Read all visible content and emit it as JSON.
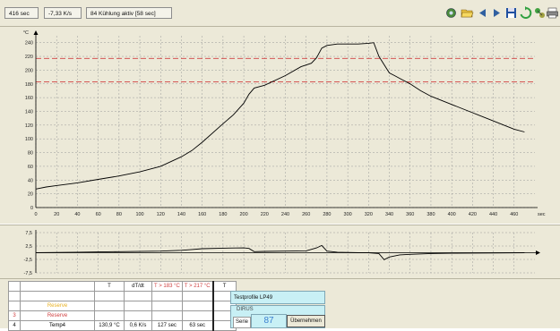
{
  "status": {
    "time": "416 sec",
    "rate": "-7,33 K/s",
    "phase": "84 Kühlung aktiv [58 sec]"
  },
  "toolbar": {
    "icons": [
      "settings-gear-icon",
      "open-folder-icon",
      "prev-arrow-icon",
      "next-arrow-icon",
      "save-disk-icon",
      "refresh-icon",
      "export-icon",
      "print-icon"
    ]
  },
  "chart_data": [
    {
      "type": "line",
      "title": "",
      "ylabel": "°C",
      "xlabel": "sec",
      "xlim": [
        0,
        480
      ],
      "ylim": [
        0,
        250
      ],
      "xticks": [
        0,
        20,
        40,
        60,
        80,
        100,
        120,
        140,
        160,
        180,
        200,
        220,
        240,
        260,
        280,
        300,
        320,
        340,
        360,
        380,
        400,
        420,
        440,
        460
      ],
      "yticks": [
        0,
        20,
        40,
        60,
        80,
        100,
        120,
        140,
        160,
        180,
        200,
        220,
        240
      ],
      "grid": true,
      "series": [
        {
          "color": "#000000",
          "x": [
            0,
            10,
            20,
            40,
            60,
            80,
            100,
            120,
            140,
            150,
            160,
            180,
            190,
            200,
            205,
            210,
            220,
            240,
            255,
            265,
            270,
            275,
            280,
            290,
            300,
            310,
            320,
            325,
            330,
            340,
            345,
            350,
            360,
            370,
            380,
            400,
            420,
            440,
            460,
            470
          ],
          "y": [
            27,
            30,
            32,
            36,
            41,
            46,
            52,
            60,
            74,
            83,
            95,
            122,
            135,
            152,
            165,
            174,
            178,
            192,
            205,
            210,
            218,
            232,
            236,
            238,
            238,
            238,
            239,
            240,
            220,
            196,
            192,
            188,
            180,
            170,
            162,
            150,
            138,
            126,
            114,
            110
          ]
        }
      ],
      "reference_lines": [
        {
          "y": 217,
          "color": "#d04040"
        },
        {
          "y": 183,
          "color": "#d04040"
        }
      ]
    },
    {
      "type": "line",
      "title": "",
      "ylim": [
        -7.5,
        7.5
      ],
      "yticks": [
        7.5,
        2.5,
        -2.5,
        -7.5
      ],
      "ytick_labels": [
        "7,5",
        "2,5",
        "-2,5",
        "-7,5"
      ],
      "xlim": [
        0,
        480
      ],
      "grid": true,
      "series": [
        {
          "color": "#000000",
          "x": [
            0,
            40,
            80,
            120,
            140,
            150,
            160,
            180,
            200,
            205,
            210,
            220,
            240,
            260,
            270,
            275,
            280,
            290,
            300,
            310,
            320,
            330,
            335,
            340,
            350,
            360,
            380,
            400,
            440,
            470
          ],
          "y": [
            0,
            0.2,
            0.4,
            0.6,
            0.9,
            1.2,
            1.5,
            1.7,
            1.8,
            1.6,
            0.4,
            0.5,
            0.6,
            0.7,
            1.8,
            2.7,
            0.6,
            0.2,
            0.1,
            0,
            0,
            -0.3,
            -2.6,
            -1.6,
            -0.8,
            -0.6,
            -0.3,
            -0.2,
            -0.1,
            0
          ]
        }
      ]
    }
  ],
  "table": {
    "headers": [
      "",
      "",
      "T",
      "dT/dt",
      "T > 183 °C",
      "T > 217 °C",
      "T"
    ],
    "header_colors": [
      "",
      "",
      "",
      "",
      "#d04040",
      "#d04040",
      ""
    ],
    "rows": [
      {
        "num": "",
        "name": "",
        "name_color": "#000000",
        "t": "",
        "dtdt": "",
        "t183": "",
        "t217": "",
        "extra": ""
      },
      {
        "num": "",
        "name": "Reserve",
        "name_color": "#e8b020",
        "t": "",
        "dtdt": "",
        "t183": "",
        "t217": "",
        "extra": ""
      },
      {
        "num": "3",
        "name": "Reserve",
        "name_color": "#d04040",
        "t": "",
        "dtdt": "",
        "t183": "",
        "t217": "",
        "extra": ""
      },
      {
        "num": "4",
        "name": "Temp4",
        "name_color": "#000000",
        "t": "130,9 °C",
        "dtdt": "0,6 K/s",
        "t183": "127 sec",
        "t217": "63 sec",
        "extra": ""
      }
    ]
  },
  "profile": {
    "name": "Testprofile LP49",
    "sub": "DIRUS",
    "serie_label": "Serie",
    "serie_value": "87",
    "apply_label": "Übernehmen"
  }
}
